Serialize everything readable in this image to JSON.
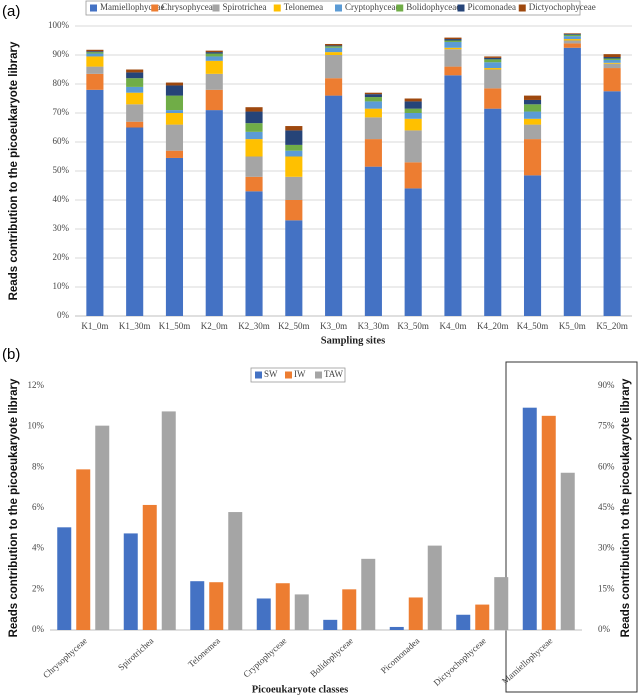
{
  "chart_data": [
    {
      "type": "stacked_bar",
      "panel_label": "(a)",
      "x_label": "Sampling sites",
      "y_label": "Reads contribution to the picoeukaryote library",
      "categories": [
        "K1_0m",
        "K1_30m",
        "K1_50m",
        "K2_0m",
        "K2_30m",
        "K2_50m",
        "K3_0m",
        "K3_30m",
        "K3_50m",
        "K4_0m",
        "K4_20m",
        "K4_50m",
        "K5_0m",
        "K5_20m"
      ],
      "series": [
        {
          "name": "Mamiellophyceae",
          "color": "#4472c4",
          "values": [
            78,
            65,
            54.5,
            71,
            43,
            33,
            76,
            51.5,
            44,
            83,
            71.5,
            48.5,
            92.5,
            77.5
          ]
        },
        {
          "name": "Chrysophyceae",
          "color": "#ed7d31",
          "values": [
            5.5,
            2,
            2.5,
            7,
            5,
            7,
            6,
            9.5,
            9,
            3,
            7,
            12.5,
            1.5,
            8
          ]
        },
        {
          "name": "Spirotrichea",
          "color": "#a5a5a5",
          "values": [
            2.5,
            6,
            9,
            5.5,
            7,
            8,
            8,
            7.5,
            11,
            6,
            6.5,
            5,
            1,
            1.5
          ]
        },
        {
          "name": "Telonemea",
          "color": "#ffc000",
          "values": [
            3.5,
            4,
            4,
            4.5,
            6,
            7,
            1,
            3,
            4,
            0.5,
            0.5,
            2,
            0.5,
            0.3
          ]
        },
        {
          "name": "Cryptophyceae",
          "color": "#5b9bd5",
          "values": [
            1,
            2,
            1,
            1.5,
            2.5,
            2,
            1.5,
            2.5,
            2,
            2,
            2,
            2.5,
            1,
            1
          ]
        },
        {
          "name": "Bolidophyceae",
          "color": "#70ad47",
          "values": [
            0.5,
            3,
            5,
            1,
            3,
            2,
            0.5,
            1.5,
            1.5,
            0.5,
            1,
            2.5,
            0.5,
            0.5
          ]
        },
        {
          "name": "Picomonadea",
          "color": "#264478",
          "values": [
            0.3,
            2,
            3.5,
            0.5,
            4,
            5,
            0.3,
            1,
            2.5,
            0.5,
            0.5,
            1.5,
            0.3,
            0.5
          ]
        },
        {
          "name": "Dictyochophyceae",
          "color": "#9e480e",
          "values": [
            0.5,
            1,
            1,
            0.5,
            1.5,
            1.5,
            0.5,
            0.5,
            1,
            0.5,
            0.5,
            1.5,
            0.2,
            1
          ]
        }
      ],
      "ylim": [
        0,
        100
      ],
      "yticks": [
        {
          "value": 0,
          "label": "0%"
        },
        {
          "value": 10,
          "label": "10%"
        },
        {
          "value": 20,
          "label": "20%"
        },
        {
          "value": 30,
          "label": "30%"
        },
        {
          "value": 40,
          "label": "40%"
        },
        {
          "value": 50,
          "label": "50%"
        },
        {
          "value": 60,
          "label": "60%"
        },
        {
          "value": 70,
          "label": "70%"
        },
        {
          "value": 80,
          "label": "80%"
        },
        {
          "value": 90,
          "label": "90%"
        },
        {
          "value": 100,
          "label": "100%"
        }
      ],
      "grid": true,
      "legend": "top"
    },
    {
      "type": "grouped_bar",
      "panel_label": "(b)",
      "x_label": "Picoeukaryote classes",
      "y_label": "Reads contribution to the picoeukaryote library",
      "categories": [
        "Chrysophyceae",
        "Spirotrichea",
        "Telonemea",
        "Cryptophyceae",
        "Bolidophyceae",
        "Picomonadea",
        "Dictyochophyceae"
      ],
      "series": [
        {
          "name": "SW",
          "color": "#4472c4",
          "values": [
            5.05,
            4.75,
            2.4,
            1.55,
            0.5,
            0.15,
            0.75
          ]
        },
        {
          "name": "IW",
          "color": "#ed7d31",
          "values": [
            7.9,
            6.15,
            2.35,
            2.3,
            2.0,
            1.6,
            1.25
          ]
        },
        {
          "name": "TAW",
          "color": "#a5a5a5",
          "values": [
            10.05,
            10.75,
            5.8,
            1.75,
            3.5,
            4.15,
            2.6
          ]
        }
      ],
      "ylim": [
        0,
        12
      ],
      "yticks": [
        {
          "value": 0,
          "label": "0%"
        },
        {
          "value": 2,
          "label": "2%"
        },
        {
          "value": 4,
          "label": "4%"
        },
        {
          "value": 6,
          "label": "6%"
        },
        {
          "value": 8,
          "label": "8%"
        },
        {
          "value": 10,
          "label": "10%"
        },
        {
          "value": 12,
          "label": "12%"
        }
      ],
      "grid": false,
      "legend": "top"
    },
    {
      "type": "grouped_bar",
      "y_label": "Reads contribution to the picoeukaryote library",
      "categories": [
        "Mamiellophyceae"
      ],
      "series": [
        {
          "color": "#4472c4",
          "values": [
            82
          ],
          "axis": "y2"
        },
        {
          "color": "#ed7d31",
          "values": [
            79
          ],
          "axis": "y2"
        },
        {
          "color": "#a5a5a5",
          "values": [
            58
          ],
          "axis": "y2"
        }
      ],
      "y2lim": [
        0,
        90
      ],
      "y2ticks": [
        {
          "value": 0,
          "label": "0%"
        },
        {
          "value": 15,
          "label": "15%"
        },
        {
          "value": 30,
          "label": "30%"
        },
        {
          "value": 45,
          "label": "45%"
        },
        {
          "value": 60,
          "label": "60%"
        },
        {
          "value": 75,
          "label": "75%"
        },
        {
          "value": 90,
          "label": "90%"
        }
      ],
      "grid": false
    }
  ]
}
